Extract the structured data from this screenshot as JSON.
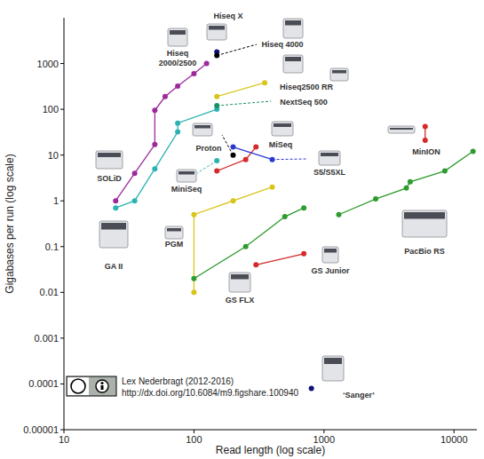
{
  "chart_data": {
    "type": "scatter",
    "log": true,
    "grid": false,
    "x_label": "Read length (log scale)",
    "y_label": "Gigabases per run (log scale)",
    "xlim": [
      10,
      15000
    ],
    "ylim": [
      1e-05,
      10000
    ],
    "xticks": [
      10,
      100,
      1000,
      10000
    ],
    "yticks": [
      {
        "value": 1e-05,
        "label": "0.00001"
      },
      0.0001,
      0.001,
      0.01,
      0.1,
      1,
      10,
      100,
      1000
    ],
    "series": [
      {
        "color": "#9c2a9c",
        "marker": "circle",
        "line_style": "solid",
        "x": [
          25,
          35,
          50,
          50,
          60,
          75,
          100,
          125
        ],
        "values": [
          1,
          4,
          17,
          95,
          190,
          320,
          600,
          1000
        ]
      },
      {
        "color": "#2bb3b3",
        "marker": "circle",
        "line_style": "solid",
        "x": [
          25,
          35,
          50,
          75,
          75,
          150
        ],
        "values": [
          0.7,
          1,
          5,
          32,
          50,
          100
        ]
      },
      {
        "color": "#d8c51c",
        "marker": "circle",
        "line_style": "solid",
        "x": [
          100,
          100,
          200,
          400
        ],
        "values": [
          0.01,
          0.5,
          1,
          2
        ]
      },
      {
        "color": "#d8c51c",
        "marker": "circle",
        "line_style": "solid",
        "x": [
          150,
          350
        ],
        "values": [
          190,
          380
        ]
      },
      {
        "color": "#d42a2a",
        "marker": "circle",
        "line_style": "solid",
        "x": [
          150,
          250,
          300
        ],
        "values": [
          4.5,
          8,
          15
        ]
      },
      {
        "color": "#d42a2a",
        "marker": "circle",
        "line_style": "solid",
        "x": [
          300,
          700
        ],
        "values": [
          0.04,
          0.07
        ]
      },
      {
        "color": "#d42a2a",
        "marker": "circle",
        "line_style": "solid",
        "x": [
          6000,
          6000
        ],
        "values": [
          42,
          21
        ]
      },
      {
        "color": "#2e9b2e",
        "marker": "circle",
        "line_style": "solid",
        "x": [
          100,
          250,
          500,
          700
        ],
        "values": [
          0.02,
          0.1,
          0.45,
          0.7
        ]
      },
      {
        "color": "#2e9b2e",
        "marker": "circle",
        "line_style": "solid",
        "x": [
          1300,
          2500,
          4300,
          4600,
          8500,
          14000
        ],
        "values": [
          0.5,
          1.1,
          1.9,
          2.6,
          4.5,
          12
        ]
      },
      {
        "color": "#2a3ad0",
        "marker": "circle",
        "line_style": "solid",
        "x": [
          200,
          400
        ],
        "values": [
          15,
          8
        ]
      },
      {
        "color": "#000000",
        "marker": "circle",
        "line_style": "solid",
        "x": [
          200
        ],
        "values": [
          10
        ]
      },
      {
        "color": "#10107a",
        "marker": "circle",
        "line_style": "solid",
        "x": [
          150
        ],
        "values": [
          1800
        ]
      },
      {
        "color": "#000000",
        "marker": "circle",
        "line_style": "solid",
        "x": [
          150
        ],
        "values": [
          1500
        ]
      },
      {
        "color": "#1a9060",
        "marker": "circle",
        "line_style": "solid",
        "x": [
          150
        ],
        "values": [
          120
        ]
      },
      {
        "color": "#2bb3b3",
        "marker": "circle",
        "line_style": "solid",
        "x": [
          150
        ],
        "values": [
          7.5
        ]
      },
      {
        "color": "#10107a",
        "marker": "circle",
        "line_style": "solid",
        "x": [
          800
        ],
        "values": [
          8e-05
        ]
      }
    ],
    "annotations": [
      "Hiseq X",
      "Hiseq 2000/2500",
      "Hiseq 4000",
      "Hiseq2500 RR",
      "NextSeq 500",
      "Proton",
      "MiSeq",
      "S5/S5XL",
      "MinION",
      "SOLiD",
      "MiniSeq",
      "GA II",
      "PGM",
      "GS Junior",
      "GS FLX",
      "PacBio RS",
      "‘Sanger’"
    ],
    "credit": [
      "Lex Nederbragt (2012-2016)",
      "http://dx.doi.org/10.6084/m9.figshare.100940"
    ]
  }
}
